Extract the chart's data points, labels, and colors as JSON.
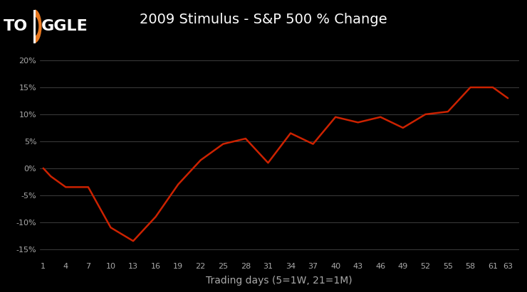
{
  "title": "2009 Stimulus - S&P 500 % Change",
  "xlabel": "Trading days (5=1W, 21=1M)",
  "background_color": "#000000",
  "line_color": "#cc2200",
  "grid_color": "#555555",
  "text_color": "#ffffff",
  "tick_label_color": "#aaaaaa",
  "x_ticks": [
    1,
    4,
    7,
    10,
    13,
    16,
    19,
    22,
    25,
    28,
    31,
    34,
    37,
    40,
    43,
    46,
    49,
    52,
    55,
    58,
    61,
    63
  ],
  "y_ticks": [
    -15,
    -10,
    -5,
    0,
    5,
    10,
    15,
    20
  ],
  "ylim": [
    -17,
    22
  ],
  "xlim": [
    0.5,
    64.5
  ],
  "data_x": [
    1,
    2,
    4,
    7,
    10,
    13,
    16,
    19,
    22,
    25,
    28,
    31,
    34,
    37,
    40,
    43,
    46,
    49,
    52,
    55,
    58,
    61,
    63
  ],
  "data_y": [
    0,
    -1.5,
    -3.5,
    -3.5,
    -11.0,
    -13.5,
    -9.0,
    -3.0,
    1.5,
    4.5,
    5.5,
    1.0,
    6.5,
    4.5,
    9.5,
    8.5,
    9.5,
    7.5,
    10.0,
    10.5,
    15.0,
    15.0,
    13.0
  ],
  "logo_circle_color": "#e87820",
  "title_fontsize": 14,
  "axis_label_fontsize": 10,
  "tick_fontsize": 8,
  "logo_fontsize": 16
}
